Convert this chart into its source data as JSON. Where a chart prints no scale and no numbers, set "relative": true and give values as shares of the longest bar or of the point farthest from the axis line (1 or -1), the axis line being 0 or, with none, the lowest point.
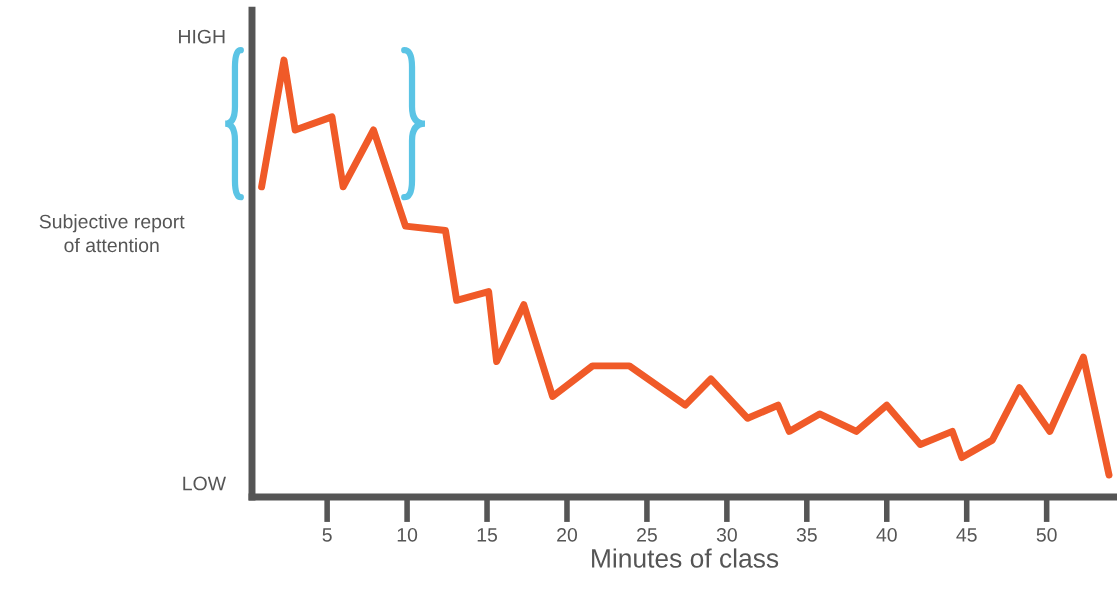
{
  "chart_data": {
    "type": "line",
    "xlabel": "Minutes of class",
    "ylabel": "Subjective report of attention",
    "relative": true,
    "annotations": [
      "HIGH",
      "LOW"
    ],
    "x": [
      0.9,
      2.3,
      3.0,
      5.3,
      6.0,
      7.9,
      9.9,
      12.4,
      13.1,
      15.1,
      15.6,
      17.3,
      19.1,
      21.6,
      23.9,
      27.4,
      29.0,
      31.3,
      33.2,
      33.9,
      35.8,
      38.1,
      40.0,
      42.1,
      44.1,
      44.7,
      46.6,
      48.3,
      50.2,
      52.3,
      53.9
    ],
    "series": [
      {
        "color": "#f05a28",
        "values": [
          0.71,
          1,
          0.84,
          0.87,
          0.71,
          0.84,
          0.62,
          0.61,
          0.45,
          0.47,
          0.31,
          0.44,
          0.23,
          0.3,
          0.3,
          0.21,
          0.27,
          0.18,
          0.21,
          0.15,
          0.19,
          0.15,
          0.21,
          0.12,
          0.15,
          0.09,
          0.13,
          0.25,
          0.15,
          0.32,
          0.05
        ]
      }
    ],
    "xlim": [
      0.3,
      54.4
    ],
    "xticks": [
      5,
      10,
      15,
      20,
      25,
      30,
      35,
      40,
      45,
      50
    ],
    "grid": false,
    "legend": false,
    "marker": "none",
    "line_style": "solid"
  }
}
